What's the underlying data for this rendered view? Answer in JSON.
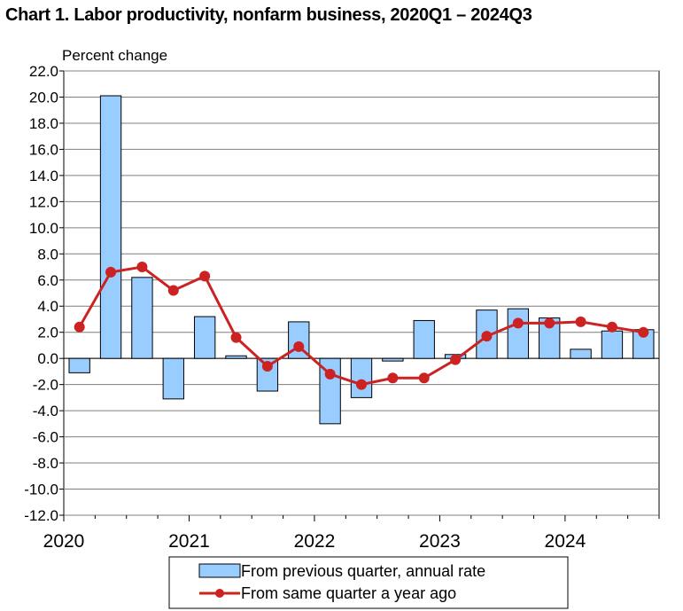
{
  "title": "Chart  1. Labor productivity, nonfarm business, 2020Q1 – 2024Q3",
  "chart_data": {
    "type": "bar",
    "title": "Chart  1. Labor productivity, nonfarm business, 2020Q1 – 2024Q3",
    "ylabel": "Percent change",
    "xlabel": "",
    "ylim": [
      -12.0,
      22.0
    ],
    "ytick_step": 2.0,
    "yticks": [
      "22.0",
      "20.0",
      "18.0",
      "16.0",
      "14.0",
      "12.0",
      "10.0",
      "8.0",
      "6.0",
      "4.0",
      "2.0",
      "0.0",
      "-2.0",
      "-4.0",
      "-6.0",
      "-8.0",
      "-10.0",
      "-12.0"
    ],
    "xtick_labels": [
      "2020",
      "2021",
      "2022",
      "2023",
      "2024"
    ],
    "quarters": [
      "2020Q1",
      "2020Q2",
      "2020Q3",
      "2020Q4",
      "2021Q1",
      "2021Q2",
      "2021Q3",
      "2021Q4",
      "2022Q1",
      "2022Q2",
      "2022Q3",
      "2022Q4",
      "2023Q1",
      "2023Q2",
      "2023Q3",
      "2023Q4",
      "2024Q1",
      "2024Q2",
      "2024Q3"
    ],
    "grid": true,
    "legend_position": "bottom",
    "series": [
      {
        "name": "From previous quarter, annual rate",
        "type": "bar",
        "color": "#99ccff",
        "edge_color": "#000000",
        "values": [
          -1.1,
          20.1,
          6.2,
          -3.1,
          3.2,
          0.2,
          -2.5,
          2.8,
          -5.0,
          -3.0,
          -0.2,
          2.9,
          0.3,
          3.7,
          3.8,
          3.1,
          0.7,
          2.1,
          2.2
        ]
      },
      {
        "name": "From same quarter a year ago",
        "type": "line",
        "color": "#cc2222",
        "values": [
          2.4,
          6.6,
          7.0,
          5.2,
          6.3,
          1.6,
          -0.6,
          0.9,
          -1.2,
          -2.0,
          -1.5,
          -1.5,
          -0.1,
          1.7,
          2.7,
          2.7,
          2.8,
          2.4,
          2.0
        ]
      }
    ]
  }
}
